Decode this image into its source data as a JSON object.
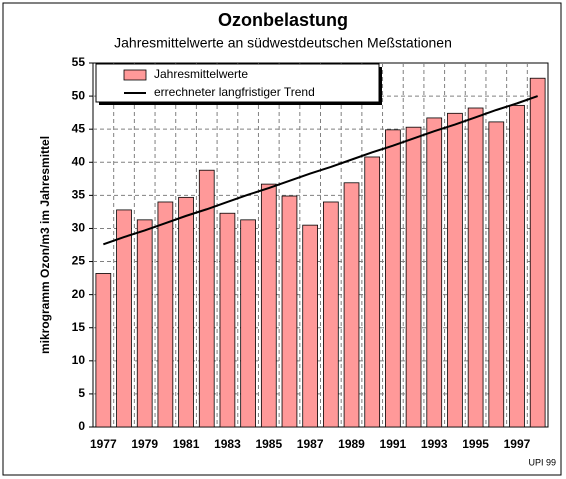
{
  "chart_data": {
    "type": "bar",
    "title": "Ozonbelastung",
    "subtitle": "Jahresmittelwerte an südwestdeutschen Meßstationen",
    "y_label": "mikrogramm Ozon/m3 im Jahresmittel",
    "annotation": "UPI 99",
    "categories": [
      "1977",
      null,
      "1979",
      null,
      "1981",
      null,
      "1983",
      null,
      "1985",
      null,
      "1987",
      null,
      "1989",
      null,
      "1991",
      null,
      "1993",
      null,
      "1995",
      null,
      "1997",
      null
    ],
    "series": [
      {
        "name": "Jahresmittelwerte",
        "type": "bar",
        "color": "#ff9999",
        "values": [
          23.2,
          32.8,
          31.3,
          34.0,
          34.7,
          38.8,
          32.3,
          31.3,
          36.7,
          34.9,
          30.5,
          34.0,
          36.9,
          40.8,
          44.9,
          45.3,
          46.7,
          47.4,
          48.2,
          46.1,
          48.6,
          52.7
        ]
      },
      {
        "name": "errechneter langfristiger Trend",
        "type": "line",
        "color": "#000000",
        "values": [
          27.6,
          28.7,
          29.7,
          30.8,
          31.9,
          32.9,
          34.0,
          35.1,
          36.1,
          37.2,
          38.3,
          39.3,
          40.4,
          41.5,
          42.5,
          43.6,
          44.7,
          45.7,
          46.8,
          47.9,
          48.9,
          50.0
        ]
      }
    ],
    "ylim": [
      0,
      55
    ],
    "yticks": [
      0,
      5,
      10,
      15,
      20,
      25,
      30,
      35,
      40,
      45,
      50,
      55
    ],
    "grid": true,
    "legend": "top-left"
  }
}
